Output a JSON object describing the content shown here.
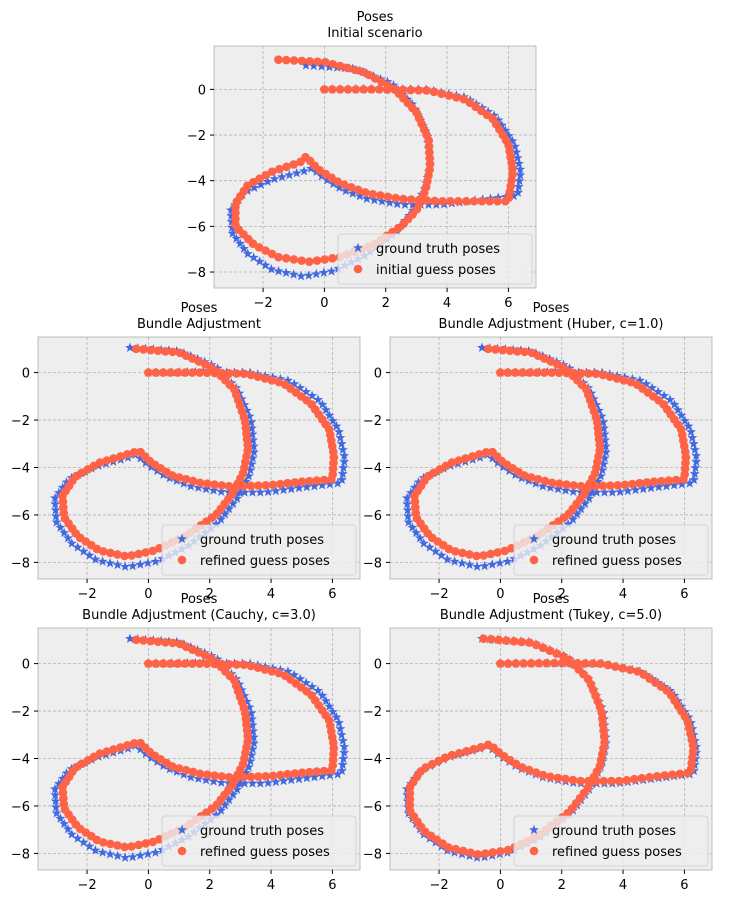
{
  "chart_data": [
    {
      "type": "scatter",
      "title": "Poses",
      "subtitle": "Initial scenario",
      "xticks": [
        "−2",
        "0",
        "2",
        "4",
        "6"
      ],
      "yticks": [
        "0",
        "−2",
        "−4",
        "−6",
        "−8"
      ],
      "xlim": [
        -3.6,
        6.9
      ],
      "ylim": [
        -8.7,
        1.9
      ],
      "grid": true,
      "legend_position": "lower-right",
      "series": [
        {
          "name": "ground truth poses",
          "marker": "star",
          "color": "#4169e1",
          "variant": "truth"
        },
        {
          "name": "initial guess poses",
          "marker": "circle",
          "color": "#ff6347",
          "variant": "initial"
        }
      ]
    },
    {
      "type": "scatter",
      "title": "Poses",
      "subtitle": "Bundle Adjustment",
      "xticks": [
        "−2",
        "0",
        "2",
        "4",
        "6"
      ],
      "yticks": [
        "0",
        "−2",
        "−4",
        "−6",
        "−8"
      ],
      "xlim": [
        -3.6,
        6.9
      ],
      "ylim": [
        -8.7,
        1.5
      ],
      "grid": true,
      "legend_position": "lower-right",
      "series": [
        {
          "name": "ground truth poses",
          "marker": "star",
          "color": "#4169e1",
          "variant": "truth"
        },
        {
          "name": "refined guess poses",
          "marker": "circle",
          "color": "#ff6347",
          "variant": "refined_small"
        }
      ]
    },
    {
      "type": "scatter",
      "title": "Poses",
      "subtitle": "Bundle Adjustment (Huber, c=1.0)",
      "xticks": [
        "−2",
        "0",
        "2",
        "4",
        "6"
      ],
      "yticks": [
        "0",
        "−2",
        "−4",
        "−6",
        "−8"
      ],
      "xlim": [
        -3.6,
        6.9
      ],
      "ylim": [
        -8.7,
        1.5
      ],
      "grid": true,
      "legend_position": "lower-right",
      "series": [
        {
          "name": "ground truth poses",
          "marker": "star",
          "color": "#4169e1",
          "variant": "truth"
        },
        {
          "name": "refined guess poses",
          "marker": "circle",
          "color": "#ff6347",
          "variant": "refined_small"
        }
      ]
    },
    {
      "type": "scatter",
      "title": "Poses",
      "subtitle": "Bundle Adjustment (Cauchy, c=3.0)",
      "xticks": [
        "−2",
        "0",
        "2",
        "4",
        "6"
      ],
      "yticks": [
        "0",
        "−2",
        "−4",
        "−6",
        "−8"
      ],
      "xlim": [
        -3.6,
        6.9
      ],
      "ylim": [
        -8.7,
        1.5
      ],
      "grid": true,
      "legend_position": "lower-right",
      "series": [
        {
          "name": "ground truth poses",
          "marker": "star",
          "color": "#4169e1",
          "variant": "truth"
        },
        {
          "name": "refined guess poses",
          "marker": "circle",
          "color": "#ff6347",
          "variant": "refined_small"
        }
      ]
    },
    {
      "type": "scatter",
      "title": "Poses",
      "subtitle": "Bundle Adjustment (Tukey, c=5.0)",
      "xticks": [
        "−2",
        "0",
        "2",
        "4",
        "6"
      ],
      "yticks": [
        "0",
        "−2",
        "−4",
        "−6",
        "−8"
      ],
      "xlim": [
        -3.6,
        6.9
      ],
      "ylim": [
        -8.7,
        1.5
      ],
      "grid": true,
      "legend_position": "lower-right",
      "series": [
        {
          "name": "ground truth poses",
          "marker": "star",
          "color": "#4169e1",
          "variant": "truth"
        },
        {
          "name": "refined guess poses",
          "marker": "circle",
          "color": "#ff6347",
          "variant": "refined_close"
        }
      ]
    }
  ],
  "trajectory_anchors": {
    "truth": [
      [
        -0.6,
        1.05
      ],
      [
        1.0,
        0.9
      ],
      [
        2.2,
        0.25
      ],
      [
        2.9,
        -0.7
      ],
      [
        3.35,
        -2.0
      ],
      [
        3.45,
        -3.3
      ],
      [
        3.3,
        -4.3
      ],
      [
        2.9,
        -5.3
      ],
      [
        2.3,
        -6.3
      ],
      [
        1.3,
        -7.3
      ],
      [
        0.3,
        -7.95
      ],
      [
        -0.7,
        -8.2
      ],
      [
        -1.7,
        -7.9
      ],
      [
        -2.5,
        -7.2
      ],
      [
        -3.0,
        -6.3
      ],
      [
        -3.05,
        -5.3
      ],
      [
        -2.6,
        -4.5
      ],
      [
        -1.7,
        -3.95
      ],
      [
        -0.7,
        -3.6
      ],
      [
        -0.4,
        -3.45
      ],
      [
        0.0,
        -3.9
      ],
      [
        0.6,
        -4.4
      ],
      [
        1.4,
        -4.8
      ],
      [
        2.5,
        -5.05
      ],
      [
        3.8,
        -5.05
      ],
      [
        5.0,
        -4.85
      ],
      [
        6.3,
        -4.65
      ],
      [
        6.4,
        -3.6
      ],
      [
        6.2,
        -2.4
      ],
      [
        5.6,
        -1.2
      ],
      [
        4.6,
        -0.35
      ],
      [
        3.3,
        0.0
      ],
      [
        1.8,
        0.02
      ],
      [
        0.0,
        0.0
      ]
    ],
    "initial": [
      [
        -1.5,
        1.3
      ],
      [
        0.0,
        1.2
      ],
      [
        1.3,
        0.75
      ],
      [
        2.3,
        0.0
      ],
      [
        3.0,
        -1.0
      ],
      [
        3.4,
        -2.2
      ],
      [
        3.45,
        -3.4
      ],
      [
        3.3,
        -4.4
      ],
      [
        3.0,
        -5.3
      ],
      [
        2.5,
        -6.0
      ],
      [
        1.6,
        -6.8
      ],
      [
        0.5,
        -7.35
      ],
      [
        -0.5,
        -7.55
      ],
      [
        -1.5,
        -7.35
      ],
      [
        -2.3,
        -6.8
      ],
      [
        -2.9,
        -6.0
      ],
      [
        -2.9,
        -5.0
      ],
      [
        -2.5,
        -4.2
      ],
      [
        -1.7,
        -3.6
      ],
      [
        -0.8,
        -3.2
      ],
      [
        -0.6,
        -2.95
      ],
      [
        -0.2,
        -3.5
      ],
      [
        0.5,
        -4.1
      ],
      [
        1.4,
        -4.55
      ],
      [
        2.5,
        -4.8
      ],
      [
        3.8,
        -4.9
      ],
      [
        5.0,
        -4.9
      ],
      [
        6.0,
        -4.9
      ],
      [
        6.15,
        -3.6
      ],
      [
        6.0,
        -2.4
      ],
      [
        5.5,
        -1.3
      ],
      [
        4.6,
        -0.45
      ],
      [
        3.4,
        -0.05
      ],
      [
        1.8,
        0.0
      ],
      [
        0.0,
        0.0
      ]
    ],
    "refined_small": [
      [
        -0.4,
        1.0
      ],
      [
        1.0,
        0.85
      ],
      [
        2.1,
        0.2
      ],
      [
        2.8,
        -0.7
      ],
      [
        3.15,
        -2.0
      ],
      [
        3.25,
        -3.2
      ],
      [
        3.1,
        -4.2
      ],
      [
        2.75,
        -5.1
      ],
      [
        2.2,
        -6.0
      ],
      [
        1.2,
        -6.9
      ],
      [
        0.2,
        -7.5
      ],
      [
        -0.7,
        -7.75
      ],
      [
        -1.6,
        -7.5
      ],
      [
        -2.3,
        -6.9
      ],
      [
        -2.75,
        -6.1
      ],
      [
        -2.8,
        -5.2
      ],
      [
        -2.4,
        -4.4
      ],
      [
        -1.6,
        -3.8
      ],
      [
        -0.7,
        -3.45
      ],
      [
        -0.3,
        -3.3
      ],
      [
        0.1,
        -3.8
      ],
      [
        0.8,
        -4.35
      ],
      [
        1.7,
        -4.65
      ],
      [
        2.7,
        -4.8
      ],
      [
        3.9,
        -4.75
      ],
      [
        5.0,
        -4.6
      ],
      [
        6.0,
        -4.5
      ],
      [
        6.05,
        -3.5
      ],
      [
        5.9,
        -2.4
      ],
      [
        5.3,
        -1.3
      ],
      [
        4.4,
        -0.45
      ],
      [
        3.2,
        -0.05
      ],
      [
        1.7,
        0.0
      ],
      [
        0.0,
        0.0
      ]
    ],
    "refined_close": [
      [
        -0.55,
        1.05
      ],
      [
        1.0,
        0.88
      ],
      [
        2.2,
        0.22
      ],
      [
        2.9,
        -0.7
      ],
      [
        3.3,
        -2.0
      ],
      [
        3.4,
        -3.3
      ],
      [
        3.25,
        -4.3
      ],
      [
        2.85,
        -5.25
      ],
      [
        2.25,
        -6.25
      ],
      [
        1.3,
        -7.2
      ],
      [
        0.3,
        -7.85
      ],
      [
        -0.7,
        -8.05
      ],
      [
        -1.7,
        -7.75
      ],
      [
        -2.5,
        -7.05
      ],
      [
        -2.95,
        -6.2
      ],
      [
        -2.95,
        -5.2
      ],
      [
        -2.55,
        -4.45
      ],
      [
        -1.7,
        -3.9
      ],
      [
        -0.7,
        -3.55
      ],
      [
        -0.35,
        -3.4
      ],
      [
        0.05,
        -3.85
      ],
      [
        0.65,
        -4.35
      ],
      [
        1.5,
        -4.75
      ],
      [
        2.6,
        -4.95
      ],
      [
        3.9,
        -4.95
      ],
      [
        5.1,
        -4.75
      ],
      [
        6.2,
        -4.6
      ],
      [
        6.3,
        -3.55
      ],
      [
        6.1,
        -2.4
      ],
      [
        5.5,
        -1.2
      ],
      [
        4.55,
        -0.35
      ],
      [
        3.3,
        0.0
      ],
      [
        1.8,
        0.02
      ],
      [
        0.0,
        0.0
      ]
    ]
  }
}
